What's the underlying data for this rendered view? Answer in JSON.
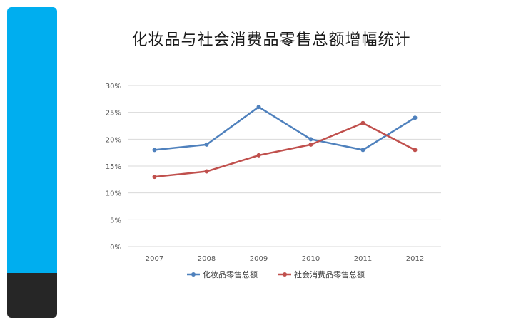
{
  "colors": {
    "sidebar_top": "#00AEEF",
    "sidebar_bottom": "#262626",
    "series_1": "#4F81BD",
    "series_2": "#C0504D",
    "grid": "#D9D9D9"
  },
  "chart_data": {
    "type": "line",
    "title": "化妆品与社会消费品零售总额增幅统计",
    "categories": [
      "2007",
      "2008",
      "2009",
      "2010",
      "2011",
      "2012"
    ],
    "series": [
      {
        "name": "化妆品零售总额",
        "values": [
          18,
          19,
          26,
          20,
          18,
          24
        ]
      },
      {
        "name": "社会消费品零售总额",
        "values": [
          13,
          14,
          17,
          19,
          23,
          18
        ]
      }
    ],
    "y_ticks": [
      "0%",
      "5%",
      "10%",
      "15%",
      "20%",
      "25%",
      "30%"
    ],
    "ylim": [
      0,
      30
    ],
    "y_unit": "%",
    "grid": true,
    "legend_position": "bottom"
  }
}
